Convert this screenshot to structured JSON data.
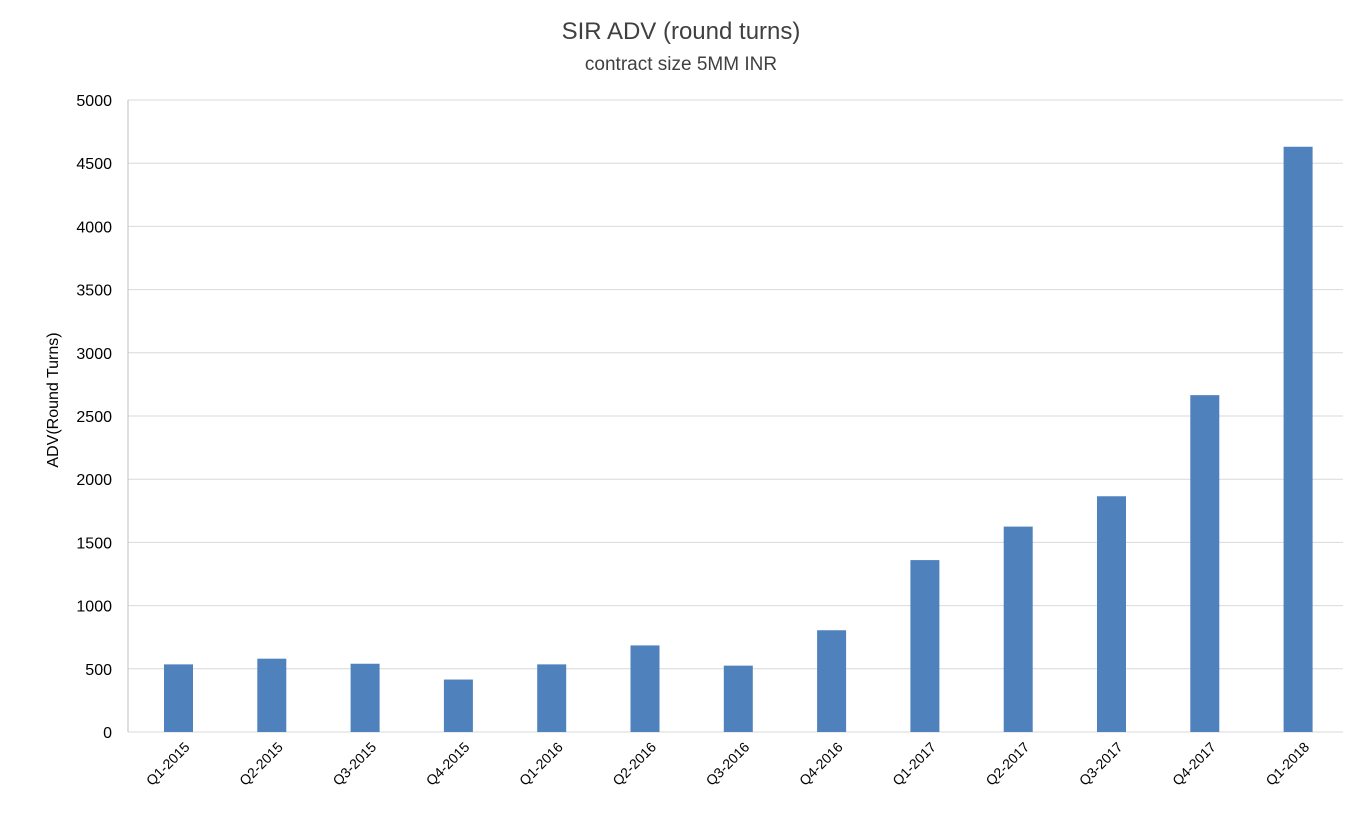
{
  "chart_data": {
    "type": "bar",
    "title": "SIR ADV (round turns)",
    "subtitle": "contract size 5MM INR",
    "xlabel": "",
    "ylabel": "ADV(Round Turns)",
    "categories": [
      "Q1-2015",
      "Q2-2015",
      "Q3-2015",
      "Q4-2015",
      "Q1-2016",
      "Q2-2016",
      "Q3-2016",
      "Q4-2016",
      "Q1-2017",
      "Q2-2017",
      "Q3-2017",
      "Q4-2017",
      "Q1-2018"
    ],
    "values": [
      535,
      580,
      540,
      415,
      535,
      685,
      525,
      805,
      1360,
      1625,
      1865,
      2665,
      4630
    ],
    "ylim": [
      0,
      5000
    ],
    "yticks": [
      0,
      500,
      1000,
      1500,
      2000,
      2500,
      3000,
      3500,
      4000,
      4500,
      5000
    ],
    "grid": true,
    "legend": "none",
    "bar_color": "#4f81bd",
    "grid_color": "#d9d9d9"
  }
}
